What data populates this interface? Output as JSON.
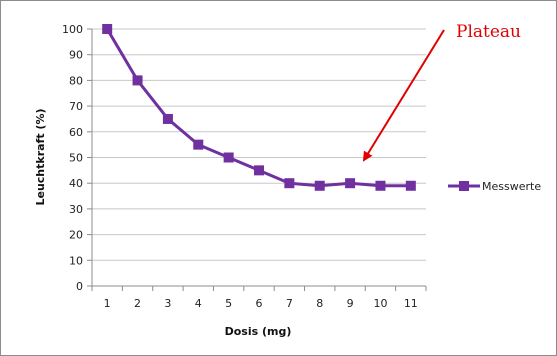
{
  "colors": {
    "series": "#7030a0",
    "annotation": "#e00000",
    "grid": "#c8c8c8",
    "axis": "#8c8c8c"
  },
  "chart_data": {
    "type": "line",
    "title": "",
    "xlabel": "Dosis (mg)",
    "ylabel": "Leuchtkraft (%)",
    "categories": [
      "1",
      "2",
      "3",
      "4",
      "5",
      "6",
      "7",
      "8",
      "9",
      "10",
      "11"
    ],
    "series": [
      {
        "name": "Messwerte",
        "values": [
          100,
          80,
          65,
          55,
          50,
          45,
          40,
          39,
          40,
          39,
          39
        ],
        "marker": "square"
      }
    ],
    "ylim": [
      0,
      100
    ],
    "yticks": [
      "0",
      "10",
      "20",
      "30",
      "40",
      "50",
      "60",
      "70",
      "80",
      "90",
      "100"
    ],
    "grid": true,
    "legend": "right",
    "annotation": {
      "text": "Plateau",
      "points_to_category": "9.5",
      "points_to_value": 48
    }
  }
}
